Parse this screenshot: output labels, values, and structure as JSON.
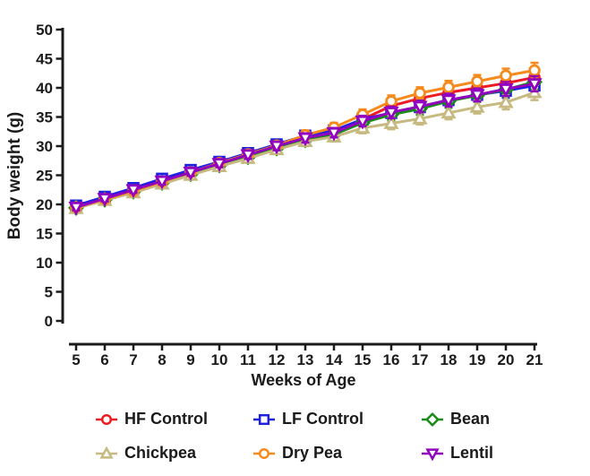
{
  "figure": {
    "background": "#ffffff",
    "axis_color": "#1b1b1b",
    "text_color": "#1b1b1b"
  },
  "chart_data": {
    "type": "line",
    "title": "",
    "xlabel": "Weeks of Age",
    "ylabel": "Body weight (g)",
    "x": [
      5,
      6,
      7,
      8,
      9,
      10,
      11,
      12,
      13,
      14,
      15,
      16,
      17,
      18,
      19,
      20,
      21
    ],
    "xlim": [
      5,
      21
    ],
    "ylim": [
      0,
      50
    ],
    "ytick_step": 5,
    "grid": false,
    "error_bars": "mean ± SEM, caps above and below markers",
    "sem": [
      0.5,
      0.5,
      0.5,
      0.6,
      0.6,
      0.6,
      0.7,
      0.7,
      0.8,
      0.8,
      0.9,
      1.0,
      1.0,
      1.1,
      1.1,
      1.2,
      1.3
    ],
    "legend_position": "bottom, 2 rows x 3 columns",
    "series": [
      {
        "name": "HF Control",
        "color": "#ED1C24",
        "marker": "circle",
        "values": [
          19.5,
          21.0,
          22.4,
          24.0,
          25.4,
          26.9,
          28.3,
          29.9,
          31.4,
          32.4,
          34.6,
          36.9,
          38.2,
          39.2,
          40.0,
          40.8,
          41.8
        ]
      },
      {
        "name": "LF Control",
        "color": "#2021E0",
        "marker": "square",
        "values": [
          19.8,
          21.3,
          22.8,
          24.4,
          25.9,
          27.3,
          28.8,
          30.3,
          31.8,
          32.7,
          34.6,
          35.7,
          36.7,
          37.9,
          38.8,
          39.5,
          40.4
        ]
      },
      {
        "name": "Bean",
        "color": "#1A8C1A",
        "marker": "diamond",
        "values": [
          19.4,
          20.8,
          22.2,
          23.7,
          25.2,
          26.7,
          28.1,
          29.6,
          31.0,
          32.0,
          34.0,
          35.4,
          36.4,
          37.7,
          38.7,
          39.7,
          41.0
        ]
      },
      {
        "name": "Chickpea",
        "color": "#C7BA80",
        "marker": "triangle-up",
        "values": [
          19.3,
          20.7,
          22.0,
          23.5,
          25.0,
          26.5,
          27.9,
          29.4,
          30.8,
          31.6,
          33.1,
          33.9,
          34.7,
          35.7,
          36.7,
          37.5,
          39.2
        ]
      },
      {
        "name": "Dry Pea",
        "color": "#F68B1D",
        "marker": "circle",
        "values": [
          19.5,
          20.9,
          22.3,
          23.9,
          25.5,
          27.1,
          28.6,
          30.1,
          31.9,
          33.2,
          35.4,
          37.7,
          39.1,
          40.1,
          41.1,
          42.1,
          43.0
        ]
      },
      {
        "name": "Lentil",
        "color": "#9101BE",
        "marker": "triangle-down",
        "values": [
          19.5,
          21.0,
          22.5,
          24.0,
          25.5,
          27.0,
          28.5,
          30.0,
          31.4,
          32.3,
          34.3,
          35.8,
          36.8,
          37.9,
          38.8,
          39.8,
          40.7
        ]
      }
    ]
  }
}
